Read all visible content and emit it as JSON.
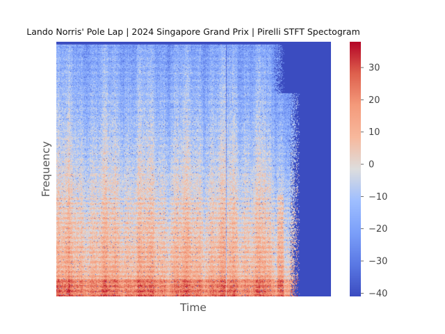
{
  "chart_data": {
    "type": "heatmap",
    "title": "Lando Norris' Pole Lap | 2024 Singapore Grand Prix | Pirelli STFT Spectogram",
    "xlabel": "Time",
    "ylabel": "Frequency",
    "x_ticks_shown": false,
    "y_ticks_shown": false,
    "grid": false,
    "colormap": "coolwarm",
    "colorbar": {
      "vmin": -41,
      "vmax": 38,
      "ticks": [
        -40,
        -30,
        -20,
        -10,
        0,
        10,
        20,
        30
      ],
      "tick_labels": [
        "−40",
        "−30",
        "−20",
        "−10",
        "0",
        "10",
        "20",
        "30"
      ]
    },
    "colors": {
      "low": "#3b4cc0",
      "mid": "#dddddd",
      "high": "#b40426"
    }
  }
}
